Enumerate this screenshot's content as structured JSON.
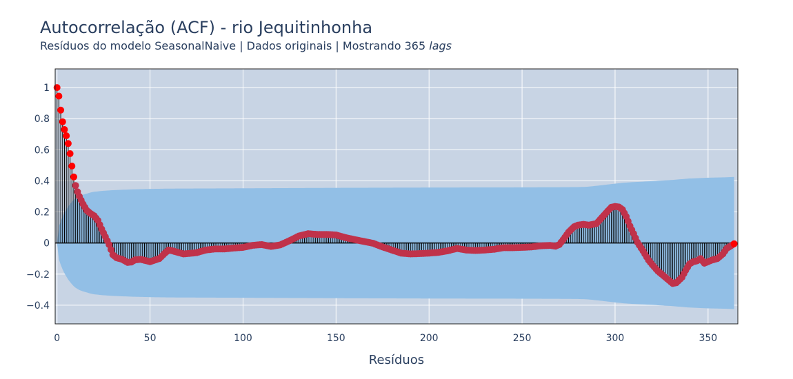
{
  "title": "Autocorrelação (ACF) - rio Jequitinhonha",
  "subtitle_main": "Resíduos do modelo SeasonalNaive | Dados originais | Mostrando 365 ",
  "subtitle_italic": "lags",
  "colors": {
    "plot_bg": "#c8d4e4",
    "band": "#92bfe6",
    "grid": "#ffffff",
    "stem": "#000000",
    "marker": "#c0324a",
    "marker_highlight": "#ff0000"
  },
  "chart_data": {
    "type": "scatter",
    "title": "Autocorrelação (ACF) - rio Jequitinhonha",
    "xlabel": "Resíduos",
    "ylabel": "",
    "xlim": [
      -1,
      366
    ],
    "ylim": [
      -0.52,
      1.12
    ],
    "x_ticks": [
      0,
      50,
      100,
      150,
      200,
      250,
      300,
      350
    ],
    "y_ticks": [
      -0.4,
      -0.2,
      0,
      0.2,
      0.4,
      0.6,
      0.8,
      1
    ],
    "y_tick_labels": [
      "−0.4",
      "−0.2",
      "0",
      "0.2",
      "0.4",
      "0.6",
      "0.8",
      "1"
    ],
    "grid": true,
    "legend": "none",
    "acf_keypoints": {
      "lags": [
        0,
        1,
        2,
        3,
        4,
        5,
        6,
        7,
        8,
        9,
        10,
        11,
        12,
        14,
        16,
        18,
        20,
        22,
        24,
        26,
        28,
        30,
        32,
        35,
        38,
        40,
        42,
        45,
        50,
        55,
        58,
        60,
        62,
        65,
        68,
        70,
        75,
        80,
        85,
        90,
        95,
        100,
        105,
        110,
        115,
        120,
        125,
        130,
        135,
        140,
        145,
        150,
        155,
        160,
        165,
        170,
        175,
        180,
        185,
        190,
        195,
        200,
        205,
        210,
        215,
        220,
        225,
        230,
        235,
        240,
        245,
        250,
        255,
        260,
        265,
        268,
        270,
        272,
        275,
        278,
        280,
        283,
        286,
        290,
        293,
        296,
        298,
        300,
        302,
        304,
        306,
        308,
        310,
        312,
        315,
        318,
        320,
        323,
        326,
        329,
        331,
        333,
        336,
        338,
        340,
        342,
        344,
        346,
        348,
        350,
        352,
        355,
        358,
        360,
        362,
        364
      ],
      "values": [
        1.0,
        0.945,
        0.855,
        0.78,
        0.73,
        0.69,
        0.64,
        0.575,
        0.495,
        0.425,
        0.37,
        0.33,
        0.3,
        0.25,
        0.21,
        0.19,
        0.175,
        0.145,
        0.09,
        0.04,
        -0.01,
        -0.075,
        -0.095,
        -0.105,
        -0.125,
        -0.122,
        -0.108,
        -0.105,
        -0.12,
        -0.1,
        -0.065,
        -0.045,
        -0.05,
        -0.06,
        -0.07,
        -0.068,
        -0.062,
        -0.045,
        -0.038,
        -0.038,
        -0.032,
        -0.028,
        -0.015,
        -0.01,
        -0.022,
        -0.012,
        0.015,
        0.045,
        0.06,
        0.055,
        0.055,
        0.052,
        0.035,
        0.022,
        0.01,
        -0.002,
        -0.025,
        -0.045,
        -0.065,
        -0.07,
        -0.068,
        -0.065,
        -0.06,
        -0.05,
        -0.035,
        -0.045,
        -0.048,
        -0.045,
        -0.04,
        -0.03,
        -0.03,
        -0.028,
        -0.025,
        -0.018,
        -0.015,
        -0.02,
        -0.01,
        0.02,
        0.07,
        0.105,
        0.115,
        0.12,
        0.115,
        0.125,
        0.165,
        0.205,
        0.23,
        0.235,
        0.232,
        0.215,
        0.17,
        0.11,
        0.06,
        0.005,
        -0.05,
        -0.11,
        -0.14,
        -0.18,
        -0.21,
        -0.24,
        -0.26,
        -0.255,
        -0.22,
        -0.175,
        -0.135,
        -0.12,
        -0.115,
        -0.1,
        -0.13,
        -0.12,
        -0.11,
        -0.1,
        -0.07,
        -0.035,
        -0.02,
        -0.005
      ]
    },
    "confidence_band_keypoints": {
      "lags": [
        0,
        1,
        2,
        3,
        4,
        5,
        6,
        7,
        8,
        9,
        10,
        11,
        12,
        14,
        16,
        18,
        20,
        25,
        30,
        40,
        50,
        60,
        100,
        150,
        200,
        250,
        270,
        280,
        285,
        290,
        295,
        300,
        305,
        310,
        320,
        330,
        340,
        350,
        360,
        364
      ],
      "upper": [
        0.0,
        0.105,
        0.14,
        0.17,
        0.195,
        0.215,
        0.235,
        0.25,
        0.265,
        0.278,
        0.288,
        0.295,
        0.302,
        0.311,
        0.318,
        0.325,
        0.33,
        0.336,
        0.34,
        0.345,
        0.348,
        0.35,
        0.352,
        0.355,
        0.357,
        0.358,
        0.359,
        0.36,
        0.362,
        0.368,
        0.375,
        0.382,
        0.388,
        0.392,
        0.398,
        0.405,
        0.415,
        0.42,
        0.423,
        0.425
      ]
    },
    "highlight_red_markers_max_lag": 9
  },
  "axes": {
    "xlabel": "Resíduos"
  }
}
